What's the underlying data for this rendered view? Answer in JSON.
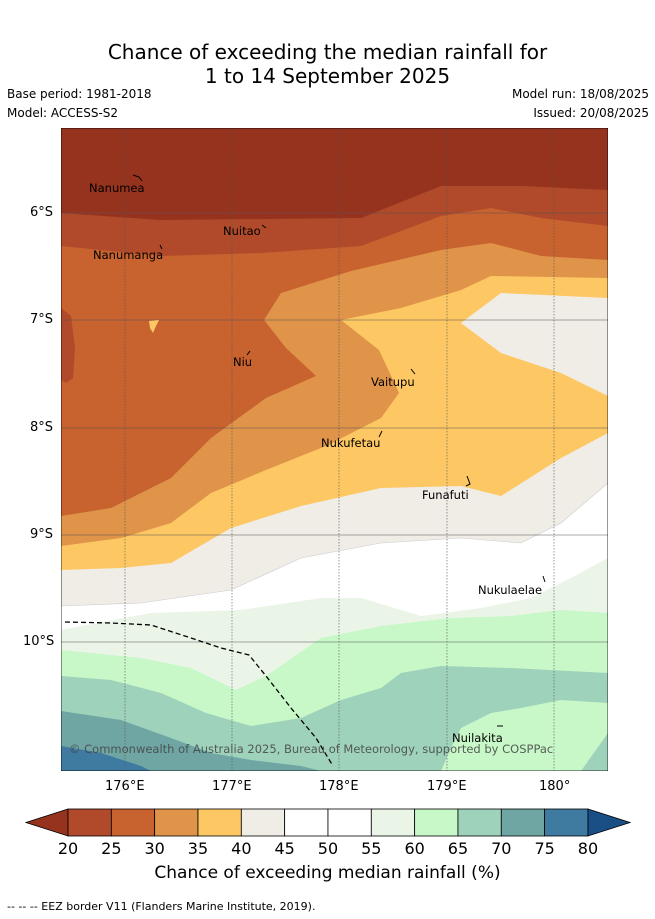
{
  "title_line1": "Chance of exceeding the median rainfall for",
  "title_line2": "1 to 14 September 2025",
  "base_period": "Base period: 1981-2018",
  "model": "Model: ACCESS-S2",
  "model_run": "Model run: 18/08/2025",
  "issued": "Issued: 20/08/2025",
  "lat_labels": [
    "6°S",
    "7°S",
    "8°S",
    "9°S",
    "10°S"
  ],
  "lon_labels": [
    "176°E",
    "177°E",
    "178°E",
    "179°E",
    "180°"
  ],
  "places": {
    "nanumea": "Nanumea",
    "nuitao": "Nuitao",
    "nanumanga": "Nanumanga",
    "niu": "Niu",
    "vaitupu": "Vaitupu",
    "nukufetau": "Nukufetau",
    "funafuti": "Funafuti",
    "nukulaelae": "Nukulaelae",
    "nuilakita": "Nuilakita"
  },
  "copyright": "© Commonwealth of Australia 2025, Bureau of Meteorology, supported by COSPPac",
  "colorbar": {
    "ticks": [
      "20",
      "25",
      "30",
      "35",
      "40",
      "45",
      "50",
      "55",
      "60",
      "65",
      "70",
      "75",
      "80"
    ],
    "colors": [
      "#b04a2a",
      "#c8622f",
      "#df9449",
      "#fdc863",
      "#f0ece6",
      "#ffffff",
      "#ffffff",
      "#eaf5e8",
      "#c8f7c8",
      "#9fd2bb",
      "#6fa6a4",
      "#3f7ba0"
    ],
    "under_color": "#96331e",
    "over_color": "#1a4f86",
    "title": "Chance of exceeding median rainfall (%)"
  },
  "footnote": "--  --  -- EEZ border V11 (Flanders Marine Institute, 2019)."
}
